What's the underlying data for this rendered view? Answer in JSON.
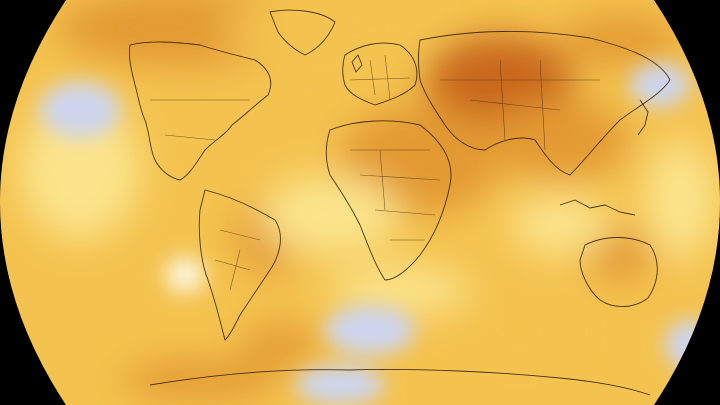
{
  "map": {
    "projection": "Robinson",
    "background_color": "#000000",
    "palette": {
      "cool": "#cdd5ee",
      "neutral": "#fbf6dc",
      "light_warm": "#fbe48c",
      "warm": "#f4c34f",
      "hot": "#e39a32",
      "hottest": "#c9681f"
    },
    "icons": [
      "coastline-outlines",
      "country-borders"
    ]
  }
}
